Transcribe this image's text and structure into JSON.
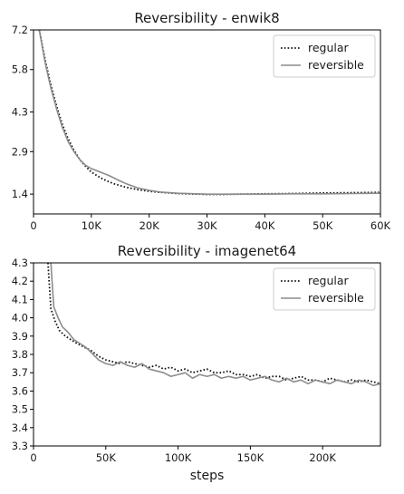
{
  "chart_data": [
    {
      "type": "line",
      "title": "Reversibility - enwik8",
      "xlabel": "",
      "ylabel": "",
      "xlim": [
        0,
        60000
      ],
      "ylim": [
        0.7,
        7.2
      ],
      "x_ticks": [
        0,
        10000,
        20000,
        30000,
        40000,
        50000,
        60000
      ],
      "x_tick_labels": [
        "0",
        "10K",
        "20K",
        "30K",
        "40K",
        "50K",
        "60K"
      ],
      "y_ticks": [
        1.4,
        2.9,
        4.3,
        5.8,
        7.2
      ],
      "y_tick_labels": [
        "1.4",
        "2.9",
        "4.3",
        "5.8",
        "7.2"
      ],
      "legend": {
        "position": "top-right"
      },
      "series": [
        {
          "name": "regular",
          "style": "dotted",
          "color": "#111111",
          "x": [
            1000,
            2000,
            3000,
            4000,
            5000,
            6000,
            7000,
            8000,
            9000,
            10000,
            11000,
            12000,
            13000,
            14000,
            15000,
            16000,
            18000,
            20000,
            22000,
            25000,
            28000,
            30000,
            33000,
            36000,
            40000,
            45000,
            50000,
            55000,
            60000
          ],
          "y": [
            7.2,
            6.15,
            5.25,
            4.5,
            3.85,
            3.35,
            2.95,
            2.62,
            2.38,
            2.18,
            2.05,
            1.93,
            1.84,
            1.76,
            1.7,
            1.64,
            1.56,
            1.5,
            1.46,
            1.42,
            1.4,
            1.39,
            1.39,
            1.4,
            1.41,
            1.42,
            1.44,
            1.45,
            1.46
          ]
        },
        {
          "name": "reversible",
          "style": "solid",
          "color": "#8c8c8c",
          "x": [
            1000,
            2000,
            3000,
            4000,
            5000,
            6000,
            7000,
            8000,
            9000,
            10000,
            11000,
            12000,
            13000,
            14000,
            15000,
            16000,
            18000,
            20000,
            22000,
            25000,
            28000,
            30000,
            33000,
            36000,
            40000,
            45000,
            50000,
            55000,
            60000
          ],
          "y": [
            7.2,
            6.05,
            5.15,
            4.4,
            3.75,
            3.25,
            2.9,
            2.62,
            2.42,
            2.3,
            2.22,
            2.14,
            2.06,
            1.96,
            1.86,
            1.77,
            1.62,
            1.53,
            1.47,
            1.43,
            1.41,
            1.4,
            1.4,
            1.4,
            1.4,
            1.41,
            1.41,
            1.42,
            1.43
          ]
        }
      ]
    },
    {
      "type": "line",
      "title": "Reversibility - imagenet64",
      "xlabel": "steps",
      "ylabel": "",
      "xlim": [
        0,
        240000
      ],
      "ylim": [
        3.3,
        4.3
      ],
      "x_ticks": [
        0,
        50000,
        100000,
        150000,
        200000
      ],
      "x_tick_labels": [
        "0",
        "50K",
        "100K",
        "150K",
        "200K"
      ],
      "y_ticks": [
        3.3,
        3.4,
        3.5,
        3.6,
        3.7,
        3.8,
        3.9,
        4.0,
        4.1,
        4.2,
        4.3
      ],
      "y_tick_labels": [
        "3.3",
        "3.4",
        "3.5",
        "3.6",
        "3.7",
        "3.8",
        "3.9",
        "4.0",
        "4.1",
        "4.2",
        "4.3"
      ],
      "legend": {
        "position": "top-right"
      },
      "series": [
        {
          "name": "regular",
          "style": "dotted",
          "color": "#111111",
          "x": [
            10000,
            12000,
            15000,
            18000,
            22000,
            26000,
            30000,
            35000,
            40000,
            45000,
            50000,
            55000,
            60000,
            65000,
            70000,
            75000,
            80000,
            85000,
            90000,
            95000,
            100000,
            105000,
            110000,
            115000,
            120000,
            125000,
            130000,
            135000,
            140000,
            145000,
            150000,
            155000,
            160000,
            165000,
            170000,
            175000,
            180000,
            185000,
            190000,
            195000,
            200000,
            205000,
            210000,
            215000,
            220000,
            225000,
            230000,
            235000,
            240000
          ],
          "y": [
            4.3,
            4.05,
            3.98,
            3.93,
            3.9,
            3.88,
            3.86,
            3.84,
            3.82,
            3.79,
            3.77,
            3.76,
            3.75,
            3.76,
            3.75,
            3.74,
            3.73,
            3.74,
            3.72,
            3.73,
            3.71,
            3.72,
            3.7,
            3.71,
            3.72,
            3.7,
            3.7,
            3.71,
            3.69,
            3.69,
            3.68,
            3.69,
            3.67,
            3.68,
            3.68,
            3.66,
            3.67,
            3.68,
            3.66,
            3.66,
            3.65,
            3.67,
            3.66,
            3.65,
            3.66,
            3.65,
            3.66,
            3.65,
            3.64
          ]
        },
        {
          "name": "reversible",
          "style": "solid",
          "color": "#8c8c8c",
          "x": [
            12000,
            14000,
            17000,
            20000,
            24000,
            28000,
            32000,
            36000,
            40000,
            45000,
            50000,
            55000,
            60000,
            65000,
            70000,
            75000,
            80000,
            85000,
            90000,
            95000,
            100000,
            105000,
            110000,
            115000,
            120000,
            125000,
            130000,
            135000,
            140000,
            145000,
            150000,
            155000,
            160000,
            165000,
            170000,
            175000,
            180000,
            185000,
            190000,
            195000,
            200000,
            205000,
            210000,
            215000,
            220000,
            225000,
            230000,
            235000,
            240000
          ],
          "y": [
            4.3,
            4.06,
            4.0,
            3.95,
            3.92,
            3.88,
            3.86,
            3.84,
            3.81,
            3.77,
            3.75,
            3.74,
            3.76,
            3.74,
            3.73,
            3.75,
            3.72,
            3.71,
            3.7,
            3.68,
            3.69,
            3.7,
            3.67,
            3.69,
            3.68,
            3.69,
            3.67,
            3.68,
            3.67,
            3.68,
            3.66,
            3.67,
            3.68,
            3.66,
            3.65,
            3.67,
            3.65,
            3.66,
            3.64,
            3.66,
            3.65,
            3.64,
            3.66,
            3.65,
            3.64,
            3.66,
            3.65,
            3.63,
            3.64
          ]
        }
      ]
    }
  ]
}
